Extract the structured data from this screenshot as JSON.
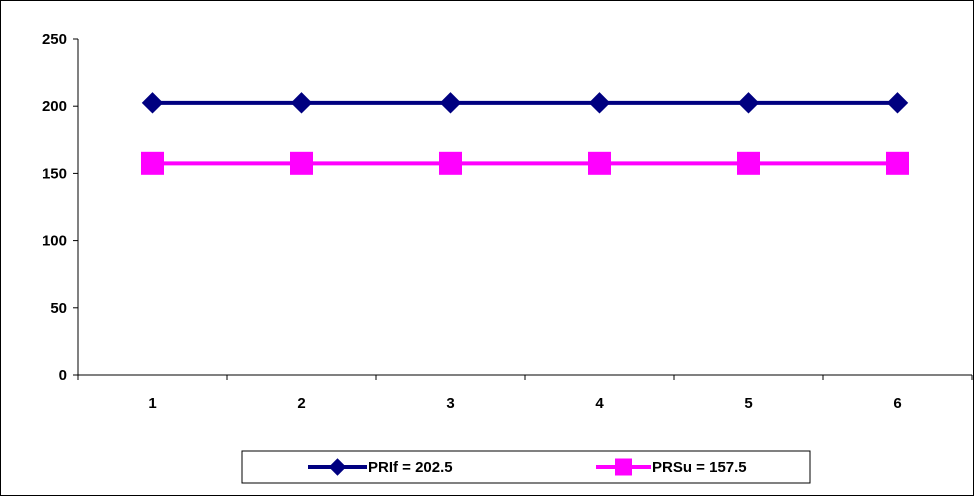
{
  "chart_data": {
    "type": "line",
    "title": "",
    "xlabel": "",
    "ylabel": "",
    "categories": [
      "1",
      "2",
      "3",
      "4",
      "5",
      "6"
    ],
    "ylim": [
      0,
      250
    ],
    "yticks": [
      "0",
      "50",
      "100",
      "150",
      "200",
      "250"
    ],
    "grid": false,
    "legend_position": "bottom",
    "series": [
      {
        "name": "PRIf = 202.5",
        "values": [
          202.5,
          202.5,
          202.5,
          202.5,
          202.5,
          202.5
        ],
        "color": "#000080",
        "marker": "diamond"
      },
      {
        "name": "PRSu = 157.5",
        "values": [
          157.5,
          157.5,
          157.5,
          157.5,
          157.5,
          157.5
        ],
        "color": "#FF00FF",
        "marker": "square"
      }
    ]
  }
}
